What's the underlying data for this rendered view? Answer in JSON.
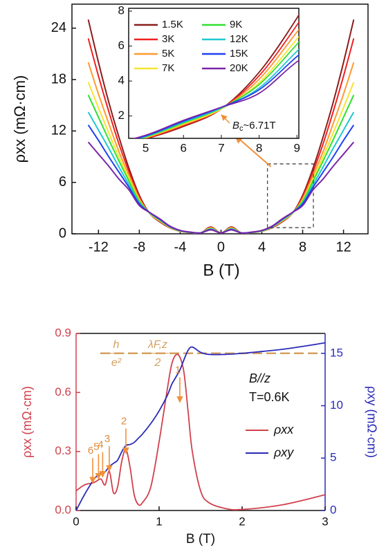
{
  "chart_data": [
    {
      "type": "line",
      "x_label": "B (T)",
      "y_label": "ρxx (mΩ·cm)",
      "xlim": [
        -14.6,
        14.4
      ],
      "ylim": [
        0,
        26.8
      ],
      "xticks": [
        -12,
        -8,
        -4,
        0,
        4,
        8,
        12
      ],
      "yticks": [
        0,
        6,
        12,
        18,
        24
      ],
      "x": [
        -13,
        -12,
        -11,
        -10,
        -9,
        -8,
        -7,
        -6,
        -5,
        -4,
        -3,
        -2,
        -1,
        0,
        1,
        2,
        3,
        4,
        5,
        6,
        7,
        8,
        9,
        10,
        11,
        12,
        13
      ],
      "series": [
        {
          "name": "1.5K",
          "color": "#8b1c1c",
          "values": [
            25.0,
            20.0,
            15.4,
            11.3,
            7.6,
            4.5,
            2.4,
            1.4,
            0.7,
            0.3,
            0.15,
            0.1,
            0.8,
            0.1,
            0.8,
            0.1,
            0.15,
            0.3,
            0.7,
            1.4,
            2.4,
            4.5,
            7.6,
            11.3,
            15.4,
            20.0,
            25.0
          ]
        },
        {
          "name": "3K",
          "color": "#f02020",
          "values": [
            22.8,
            18.4,
            14.3,
            10.5,
            7.2,
            4.3,
            2.4,
            1.45,
            0.72,
            0.3,
            0.15,
            0.1,
            0.75,
            0.1,
            0.75,
            0.1,
            0.15,
            0.3,
            0.72,
            1.45,
            2.4,
            4.3,
            7.2,
            10.5,
            14.3,
            18.4,
            22.8
          ]
        },
        {
          "name": "5K",
          "color": "#ff9a30",
          "values": [
            20.0,
            16.3,
            12.9,
            9.6,
            6.8,
            4.1,
            2.4,
            1.5,
            0.75,
            0.3,
            0.15,
            0.1,
            0.7,
            0.1,
            0.7,
            0.1,
            0.15,
            0.3,
            0.75,
            1.5,
            2.4,
            4.1,
            6.8,
            9.6,
            12.9,
            16.3,
            20.0
          ]
        },
        {
          "name": "7K",
          "color": "#f5e530",
          "values": [
            17.7,
            14.7,
            11.8,
            9.0,
            6.4,
            3.9,
            2.4,
            1.55,
            0.78,
            0.32,
            0.15,
            0.1,
            0.65,
            0.1,
            0.65,
            0.1,
            0.15,
            0.32,
            0.78,
            1.55,
            2.4,
            3.9,
            6.4,
            9.0,
            11.8,
            14.7,
            17.7
          ]
        },
        {
          "name": "9K",
          "color": "#30e030",
          "values": [
            16.2,
            13.6,
            11.0,
            8.5,
            6.1,
            3.8,
            2.45,
            1.6,
            0.8,
            0.34,
            0.16,
            0.1,
            0.6,
            0.1,
            0.6,
            0.1,
            0.16,
            0.34,
            0.8,
            1.6,
            2.45,
            3.8,
            6.1,
            8.5,
            11.0,
            13.6,
            16.2
          ]
        },
        {
          "name": "12K",
          "color": "#20c8d0",
          "values": [
            14.2,
            12.1,
            10.0,
            7.8,
            5.7,
            3.6,
            2.45,
            1.65,
            0.83,
            0.36,
            0.17,
            0.1,
            0.55,
            0.1,
            0.55,
            0.1,
            0.17,
            0.36,
            0.83,
            1.65,
            2.45,
            3.6,
            5.7,
            7.8,
            10.0,
            12.1,
            14.2
          ]
        },
        {
          "name": "15K",
          "color": "#2040f0",
          "values": [
            12.7,
            10.9,
            9.0,
            7.2,
            5.4,
            3.5,
            2.5,
            1.7,
            0.86,
            0.38,
            0.18,
            0.1,
            0.5,
            0.1,
            0.5,
            0.1,
            0.18,
            0.38,
            0.86,
            1.7,
            2.5,
            3.5,
            5.4,
            7.2,
            9.0,
            10.9,
            12.7
          ]
        },
        {
          "name": "20K",
          "color": "#7a24a8",
          "values": [
            10.7,
            9.3,
            7.9,
            6.4,
            5.1,
            3.3,
            2.5,
            1.75,
            0.9,
            0.4,
            0.2,
            0.1,
            0.45,
            0.1,
            0.45,
            0.1,
            0.2,
            0.4,
            0.9,
            1.75,
            2.5,
            3.3,
            5.1,
            6.4,
            7.9,
            9.3,
            10.7
          ]
        }
      ],
      "inset": {
        "xlim": [
          4.55,
          9.05
        ],
        "ylim": [
          0.72,
          8.16
        ],
        "xticks": [
          5,
          6,
          7,
          8,
          9
        ],
        "yticks": [
          2,
          4,
          6,
          8
        ],
        "legend": "upper left",
        "annotation": {
          "text": "B",
          "sub": "c",
          "rest": "~6.71T"
        }
      }
    },
    {
      "type": "line",
      "x_label": "B (T)",
      "y_label": "ρxx (mΩ·cm)",
      "y2_label": "ρxy (mΩ·cm)",
      "y_color": "#d0404c",
      "y2_color": "#2a2ab8",
      "xlim": [
        0,
        3
      ],
      "ylim": [
        0,
        0.9
      ],
      "y2lim": [
        0,
        16.9
      ],
      "xticks": [
        0,
        1,
        2,
        3
      ],
      "yticks": [
        {
          "value": 0,
          "label": "0.0"
        },
        0.3,
        0.6,
        0.9
      ],
      "y2ticks": [
        0,
        5,
        10,
        15
      ],
      "x": [
        0,
        0.1,
        0.2,
        0.25,
        0.3,
        0.35,
        0.4,
        0.45,
        0.5,
        0.55,
        0.6,
        0.65,
        0.7,
        0.75,
        0.8,
        0.9,
        1.0,
        1.1,
        1.15,
        1.2,
        1.25,
        1.3,
        1.35,
        1.4,
        1.5,
        1.6,
        1.8,
        2.0,
        2.5,
        3.0
      ],
      "series": [
        {
          "name": "ρxx",
          "color": "#d0404c",
          "values": [
            0.1,
            0.13,
            0.14,
            0.15,
            0.16,
            0.13,
            0.2,
            0.09,
            0.12,
            0.25,
            0.31,
            0.22,
            0.08,
            0.03,
            0.04,
            0.12,
            0.35,
            0.62,
            0.74,
            0.79,
            0.78,
            0.7,
            0.5,
            0.3,
            0.1,
            0.04,
            0.01,
            0.005,
            0.03,
            0.08
          ]
        },
        {
          "name": "ρxy",
          "color": "#2a2ab8",
          "axis": "y2",
          "values": [
            0,
            1.5,
            2.8,
            3.3,
            3.6,
            3.7,
            4.2,
            4.5,
            4.8,
            5.6,
            6.2,
            6.3,
            6.5,
            6.9,
            7.3,
            8.3,
            9.5,
            11,
            12,
            12.7,
            13.4,
            14.4,
            15.3,
            15.6,
            15.1,
            14.9,
            14.9,
            15.0,
            15.4,
            16.0
          ]
        }
      ],
      "reference_line": {
        "value": 15,
        "axis": "y2",
        "color": "#d4a060",
        "label": [
          "h",
          "e²",
          "λF,z",
          "2"
        ]
      },
      "annotations": [
        "B//z",
        "T=0.6K"
      ],
      "markers": [
        {
          "label": "1",
          "x": 1.25,
          "y": 0.55
        },
        {
          "label": "2",
          "x": 0.6,
          "y": 0.29
        },
        {
          "label": "3",
          "x": 0.4,
          "y": 0.2
        },
        {
          "label": "4",
          "x": 0.32,
          "y": 0.17
        },
        {
          "label": "5",
          "x": 0.27,
          "y": 0.16
        },
        {
          "label": "6",
          "x": 0.2,
          "y": 0.14
        }
      ]
    }
  ]
}
